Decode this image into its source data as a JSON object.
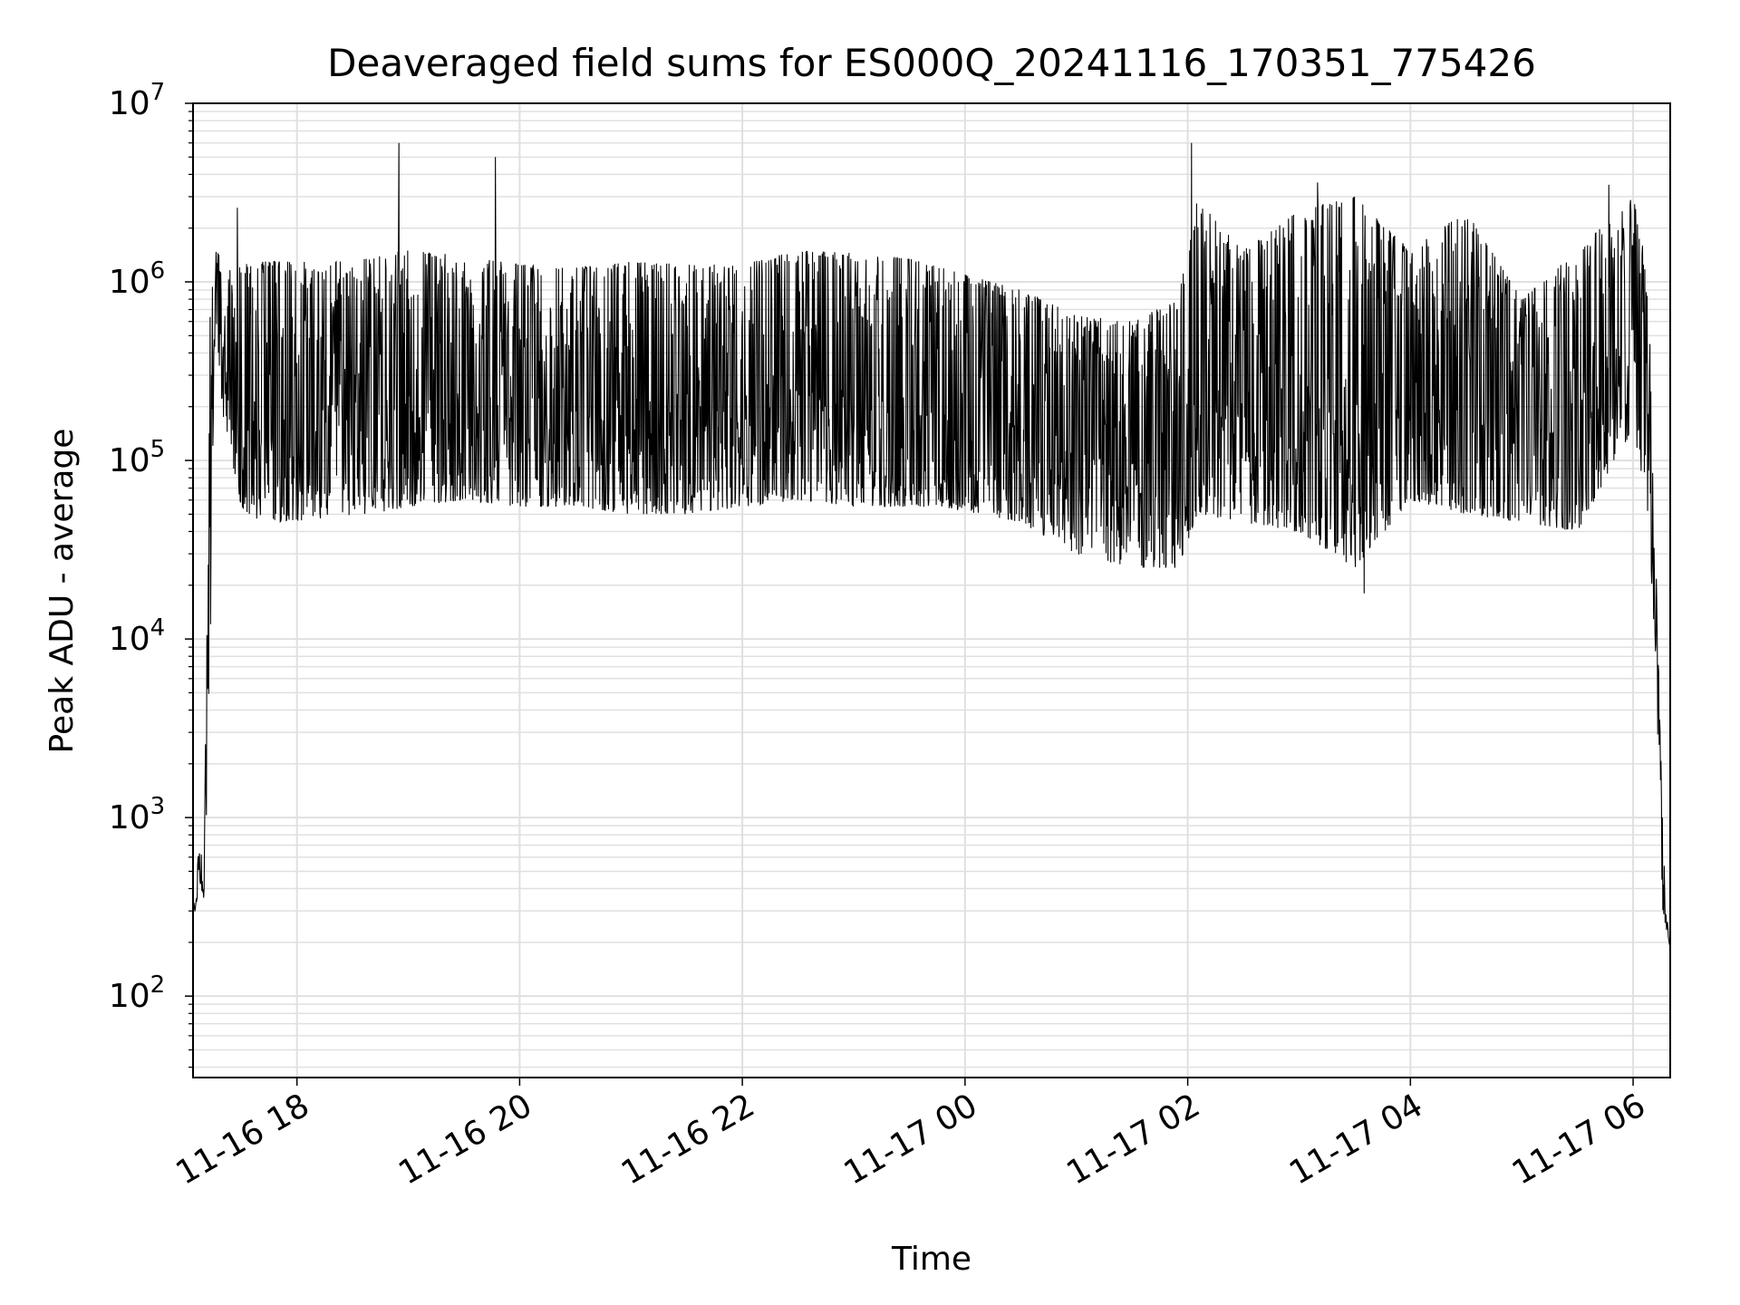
{
  "chart_data": {
    "type": "line",
    "title": "Deaveraged field sums for ES000Q_20241116_170351_775426",
    "xlabel": "Time",
    "ylabel": "Peak ADU - average",
    "x_tick_labels": [
      "11-16 18",
      "11-16 20",
      "11-16 22",
      "11-17 00",
      "11-17 02",
      "11-17 04",
      "11-17 06"
    ],
    "xlim": [
      "2024-11-16 17:04",
      "2024-11-17 06:20"
    ],
    "yscale": "log",
    "ylim": [
      35,
      10000000
    ],
    "y_tick_labels": [
      {
        "base": "10",
        "exp": "2"
      },
      {
        "base": "10",
        "exp": "3"
      },
      {
        "base": "10",
        "exp": "4"
      },
      {
        "base": "10",
        "exp": "5"
      },
      {
        "base": "10",
        "exp": "6"
      },
      {
        "base": "10",
        "exp": "7"
      }
    ],
    "grid": true,
    "line_color": "#000000",
    "grid_color": "#e0e0e0",
    "envelope": {
      "x": [
        "2024-11-16 17:04",
        "2024-11-16 17:07",
        "2024-11-16 17:10",
        "2024-11-16 17:13",
        "2024-11-16 17:16",
        "2024-11-16 17:20",
        "2024-11-16 17:25",
        "2024-11-16 17:30",
        "2024-11-16 17:36",
        "2024-11-16 17:45",
        "2024-11-16 18:00",
        "2024-11-16 18:30",
        "2024-11-16 19:00",
        "2024-11-16 19:30",
        "2024-11-16 20:00",
        "2024-11-16 20:30",
        "2024-11-16 21:00",
        "2024-11-16 21:30",
        "2024-11-16 22:00",
        "2024-11-16 22:30",
        "2024-11-16 23:00",
        "2024-11-16 23:30",
        "2024-11-17 00:00",
        "2024-11-17 00:30",
        "2024-11-17 01:00",
        "2024-11-17 01:30",
        "2024-11-17 01:55",
        "2024-11-17 02:05",
        "2024-11-17 02:30",
        "2024-11-17 03:00",
        "2024-11-17 03:30",
        "2024-11-17 04:00",
        "2024-11-17 04:30",
        "2024-11-17 05:00",
        "2024-11-17 05:30",
        "2024-11-17 06:00",
        "2024-11-17 06:08",
        "2024-11-17 06:12",
        "2024-11-17 06:16",
        "2024-11-17 06:20"
      ],
      "low": [
        250,
        400,
        350,
        5000,
        700000,
        180000,
        100000,
        55000,
        48000,
        45000,
        46000,
        48000,
        55000,
        60000,
        55000,
        55000,
        50000,
        50000,
        55000,
        60000,
        55000,
        55000,
        52000,
        45000,
        30000,
        25000,
        25000,
        50000,
        45000,
        40000,
        25000,
        60000,
        50000,
        45000,
        40000,
        150000,
        50000,
        8000,
        300,
        180
      ],
      "high": [
        300,
        650,
        600,
        800000,
        1500000,
        1400000,
        1200000,
        1250000,
        1300000,
        1300000,
        1300000,
        1300000,
        1500000,
        1400000,
        1250000,
        1200000,
        1300000,
        1250000,
        1250000,
        1500000,
        1450000,
        1350000,
        1100000,
        900000,
        650000,
        600000,
        800000,
        2900000,
        1500000,
        2500000,
        3000000,
        1500000,
        2500000,
        800000,
        1500000,
        3000000,
        1200000,
        40000,
        800,
        350
      ]
    },
    "spikes": [
      {
        "x": "2024-11-16 17:28",
        "y": 2600000
      },
      {
        "x": "2024-11-16 18:55",
        "y": 6000000
      },
      {
        "x": "2024-11-16 19:47",
        "y": 5000000
      },
      {
        "x": "2024-11-17 02:02",
        "y": 6000000
      },
      {
        "x": "2024-11-17 03:10",
        "y": 3600000
      },
      {
        "x": "2024-11-17 03:35",
        "y": 18000
      },
      {
        "x": "2024-11-17 05:47",
        "y": 3500000
      }
    ]
  }
}
